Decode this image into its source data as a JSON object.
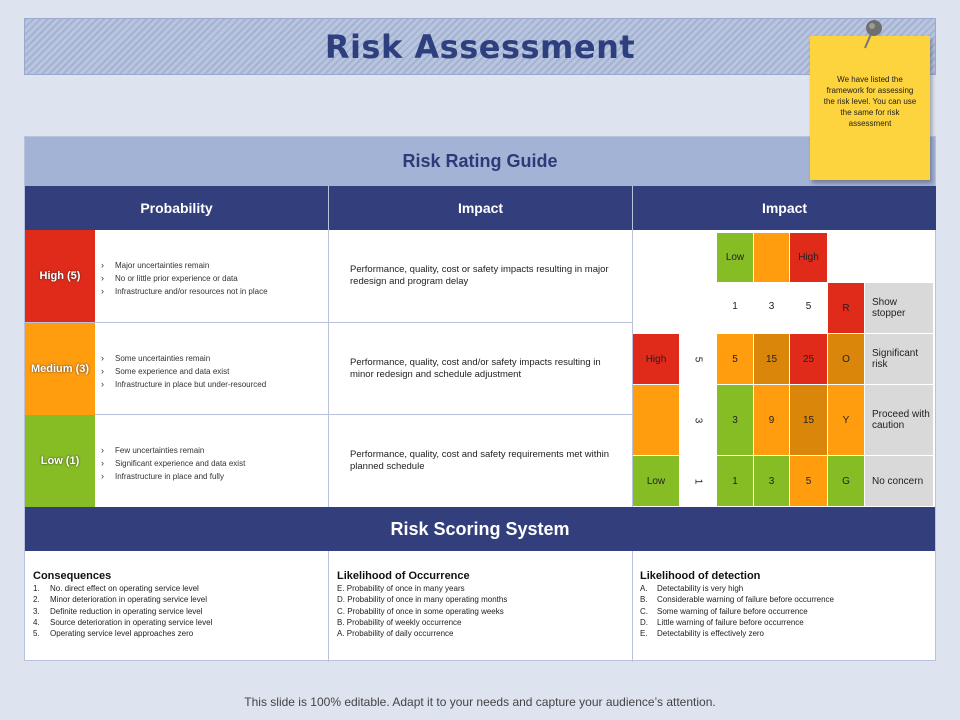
{
  "title": "Risk Assessment",
  "note": "We have listed the framework for assessing the risk level. You can use the same for risk assessment",
  "guide": {
    "heading": "Risk Rating Guide",
    "col_probability": "Probability",
    "col_impact": "Impact",
    "col_impact_matrix": "Impact",
    "rows": [
      {
        "level": "High (5)",
        "color": "#e02a1a",
        "bullets": [
          "Major uncertainties remain",
          "No or little prior experience or data",
          "Infrastructure and/or resources not in place"
        ],
        "impact": "Performance, quality, cost or safety impacts resulting in major redesign and program delay"
      },
      {
        "level": "Medium (3)",
        "color": "#ff9d0f",
        "bullets": [
          "Some uncertainties remain",
          "Some experience and data exist",
          "Infrastructure in place but under-resourced"
        ],
        "impact": "Performance, quality, cost and/or safety impacts resulting in minor redesign and schedule adjustment"
      },
      {
        "level": "Low (1)",
        "color": "#86bd24",
        "bullets": [
          "Few uncertainties remain",
          "Significant experience and data exist",
          "Infrastructure in place and fully"
        ],
        "impact": "Performance, quality, cost and safety requirements met within planned schedule"
      }
    ]
  },
  "matrix": {
    "top_low": "Low",
    "top_high": "High",
    "col_values": [
      "1",
      "3",
      "5"
    ],
    "prob_high": "High",
    "prob_low": "Low",
    "prob_values": [
      "5",
      "3",
      "1"
    ],
    "cells": [
      [
        "5",
        "15",
        "25"
      ],
      [
        "3",
        "9",
        "15"
      ],
      [
        "1",
        "3",
        "5"
      ]
    ],
    "legend": [
      {
        "code": "R",
        "label": "Show stopper"
      },
      {
        "code": "O",
        "label": "Significant risk"
      },
      {
        "code": "Y",
        "label": "Proceed with caution"
      },
      {
        "code": "G",
        "label": "No concern"
      }
    ],
    "colors": {
      "red": "#e02a1a",
      "orange": "#ff9d0f",
      "amber": "#d9860a",
      "green": "#86bd24",
      "grey": "#d9d9d9"
    }
  },
  "scoring": {
    "heading": "Risk Scoring System",
    "consequences": {
      "title": "Consequences",
      "items": [
        {
          "k": "1.",
          "t": "No. direct effect on operating service level"
        },
        {
          "k": "2.",
          "t": "Minor deterioration in operating service level"
        },
        {
          "k": "3.",
          "t": "Definite reduction in operating service level"
        },
        {
          "k": "4.",
          "t": "Source deterioration in operating service level"
        },
        {
          "k": "5.",
          "t": "Operating service level approaches zero"
        }
      ]
    },
    "likelihood": {
      "title": "Likelihood of Occurrence",
      "items": [
        "E. Probability of once in many years",
        "D. Probability of once in many operating months",
        "C. Probability of once in some operating weeks",
        "B. Probability of weekly occurrence",
        "A. Probability of daily occurrence"
      ]
    },
    "detection": {
      "title": "Likelihood of detection",
      "items": [
        {
          "k": "A.",
          "t": "Detectability is very high"
        },
        {
          "k": "B.",
          "t": "Considerable warning of failure before occurrence"
        },
        {
          "k": "C.",
          "t": "Some warning of failure before occurrence"
        },
        {
          "k": "D.",
          "t": "Little warning of failure before occurrence"
        },
        {
          "k": "E.",
          "t": "Detectability is effectively zero"
        }
      ]
    }
  },
  "footer": "This slide is 100% editable. Adapt it to your needs and capture your audience’s attention."
}
